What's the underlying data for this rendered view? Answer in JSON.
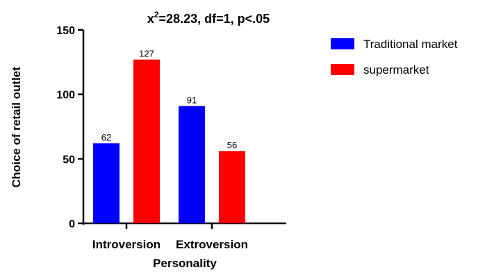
{
  "chart_data": {
    "type": "bar",
    "title": {
      "prefix": "x",
      "superscript": "2",
      "suffix": "=28.23, df=1, p<.05"
    },
    "xlabel": "Personality",
    "ylabel": "Choice of retail outlet",
    "categories": [
      "Introversion",
      "Extroversion"
    ],
    "series": [
      {
        "name": "Traditional market",
        "color": "#0000ff",
        "values": [
          62,
          91
        ]
      },
      {
        "name": "supermarket",
        "color": "#ff0000",
        "values": [
          127,
          56
        ]
      }
    ],
    "ylim": [
      0,
      150
    ],
    "yticks": [
      0,
      50,
      100,
      150
    ],
    "grid": false,
    "legend_position": "top-right"
  }
}
